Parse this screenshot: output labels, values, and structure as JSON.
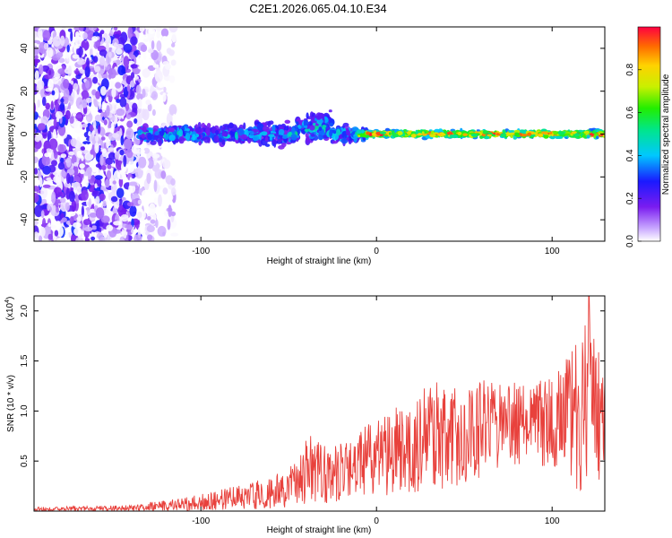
{
  "page_title": "C2E1.2026.065.04.10.E34",
  "chart_data": [
    {
      "type": "heatmap",
      "id": "spectrogram",
      "xlabel": "Height of straight line (km)",
      "ylabel": "Frequency (Hz)",
      "xlim": [
        -195,
        130
      ],
      "ylim": [
        -50,
        50
      ],
      "x_ticks": [
        -100,
        0,
        100
      ],
      "y_ticks": [
        -40,
        -20,
        0,
        20,
        40
      ],
      "colorbar": {
        "label": "Normalized spectral amplitude",
        "range": [
          0,
          1
        ],
        "ticks": [
          0.0,
          0.2,
          0.4,
          0.6,
          0.8
        ],
        "tick_labels": [
          "0.0",
          "0.2",
          "0.4",
          "0.6",
          "0.8"
        ]
      },
      "regions": [
        {
          "name": "noise",
          "x_range": [
            -195,
            -135
          ],
          "freq_range": [
            -50,
            50
          ],
          "amplitude": [
            0.0,
            0.3
          ]
        },
        {
          "name": "faint-transition",
          "x_range": [
            -135,
            -115
          ],
          "freq_range": [
            -50,
            50
          ],
          "amplitude": [
            0.0,
            0.08
          ]
        },
        {
          "name": "broad-signal",
          "x_range": [
            -135,
            -5
          ],
          "freq_range": [
            -12,
            10
          ],
          "amplitude": [
            0.15,
            0.5
          ]
        },
        {
          "name": "narrow-signal",
          "x_range": [
            -10,
            130
          ],
          "freq_range": [
            -3,
            3
          ],
          "amplitude": [
            0.4,
            0.95
          ]
        }
      ]
    },
    {
      "type": "line",
      "id": "snr",
      "xlabel": "Height of straight line (km)",
      "ylabel": "SNR (10 * v/v)",
      "scale_label": "(x10",
      "scale_exponent": "4",
      "scale_close": ")",
      "xlim": [
        -195,
        130
      ],
      "ylim": [
        0,
        2.15
      ],
      "x_ticks": [
        -100,
        0,
        100
      ],
      "y_ticks": [
        0.5,
        1.0,
        1.5,
        2.0
      ],
      "y_tick_labels": [
        "0.5",
        "1.0",
        "1.5",
        "2.0"
      ],
      "color": "#e8413c",
      "envelope": [
        {
          "x": -195,
          "mean": 0.02,
          "amp": 0.02
        },
        {
          "x": -140,
          "mean": 0.03,
          "amp": 0.03
        },
        {
          "x": -115,
          "mean": 0.06,
          "amp": 0.06
        },
        {
          "x": -100,
          "mean": 0.09,
          "amp": 0.09
        },
        {
          "x": -80,
          "mean": 0.13,
          "amp": 0.12
        },
        {
          "x": -60,
          "mean": 0.18,
          "amp": 0.16
        },
        {
          "x": -45,
          "mean": 0.28,
          "amp": 0.25
        },
        {
          "x": -38,
          "mean": 0.42,
          "amp": 0.36
        },
        {
          "x": -28,
          "mean": 0.35,
          "amp": 0.28
        },
        {
          "x": -15,
          "mean": 0.4,
          "amp": 0.32
        },
        {
          "x": 0,
          "mean": 0.55,
          "amp": 0.4
        },
        {
          "x": 20,
          "mean": 0.68,
          "amp": 0.5
        },
        {
          "x": 40,
          "mean": 0.78,
          "amp": 0.55
        },
        {
          "x": 60,
          "mean": 0.82,
          "amp": 0.5
        },
        {
          "x": 80,
          "mean": 0.86,
          "amp": 0.42
        },
        {
          "x": 100,
          "mean": 0.9,
          "amp": 0.45
        },
        {
          "x": 115,
          "mean": 0.95,
          "amp": 0.75
        },
        {
          "x": 120,
          "mean": 1.05,
          "amp": 0.95
        },
        {
          "x": 130,
          "mean": 0.95,
          "amp": 0.55
        }
      ],
      "peak": {
        "x": 121,
        "y": 2.15
      }
    }
  ]
}
